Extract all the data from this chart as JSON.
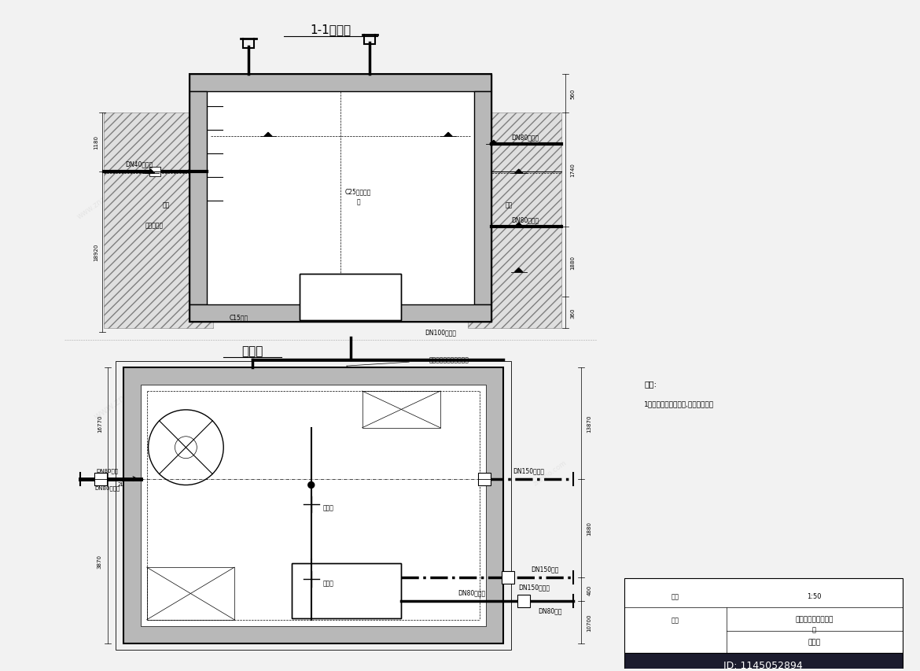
{
  "bg_color": "#f2f2f2",
  "line_color": "#000000",
  "title1": "1-1剖面图",
  "title2": "平面图",
  "note_title": "说明:",
  "note1": "1、图中尺寸以毫米计,高程以米计。",
  "scale_label": "比例  1:50",
  "drawing_name": "方形水池地进、出水",
  "drawing_name2": "管",
  "drawing_type": "位置图",
  "id_label": "ID: 1145052894",
  "dim_sec_left1": "1180",
  "dim_sec_left2": "18920",
  "dim_sec_right1": "560",
  "dim_sec_right2": "1740",
  "dim_sec_right3": "1880",
  "dim_sec_right4": "360",
  "dim_plan_left1": "16770",
  "dim_plan_left2": "3870",
  "dim_plan_right1": "13870",
  "dim_plan_right2": "1880",
  "dim_plan_right3": "400",
  "dim_plan_right4": "10700"
}
